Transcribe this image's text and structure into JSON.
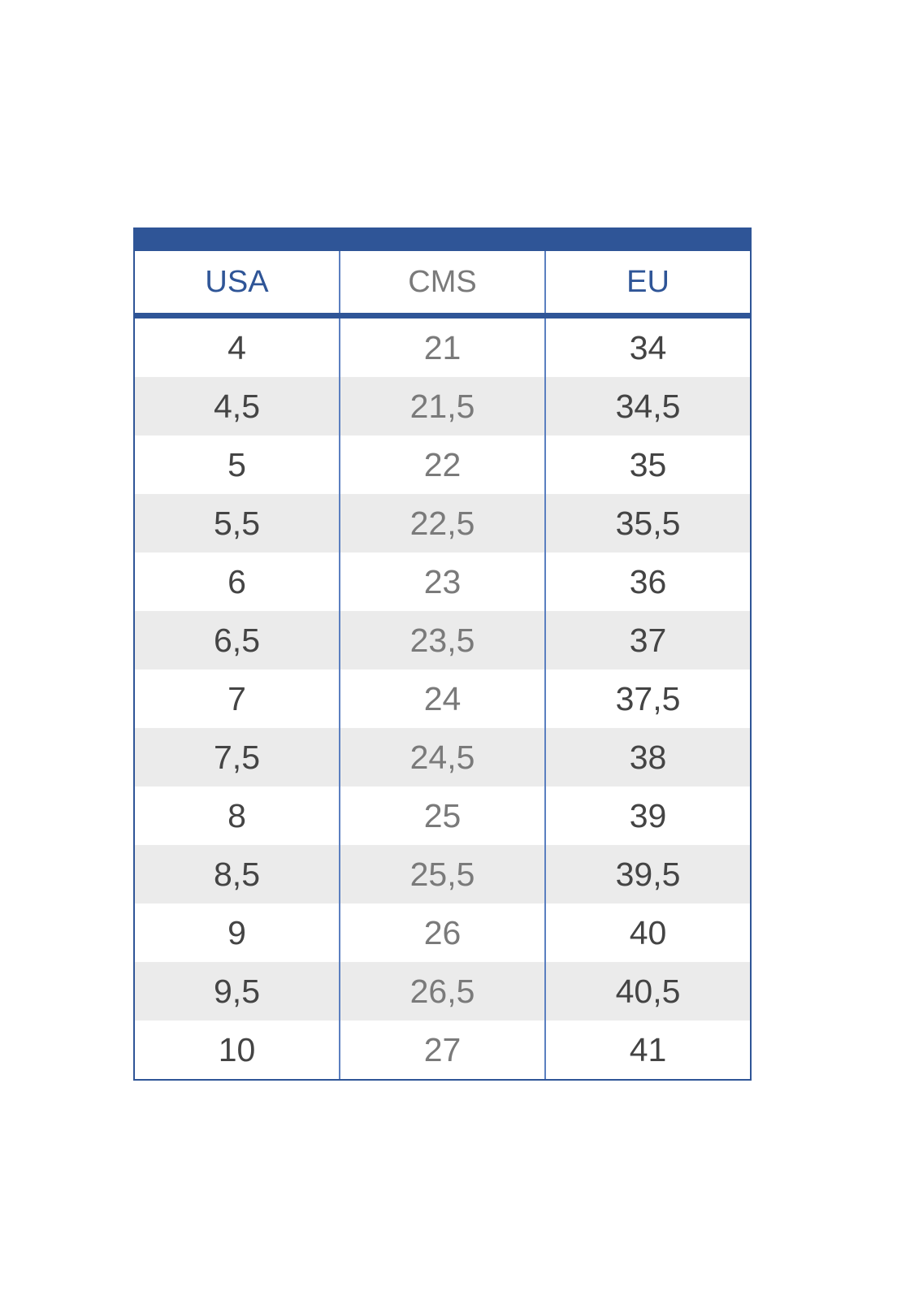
{
  "table": {
    "header": [
      "USA",
      "CMS",
      "EU"
    ],
    "rows": [
      [
        "4",
        "21",
        "34"
      ],
      [
        "4,5",
        "21,5",
        "34,5"
      ],
      [
        "5",
        "22",
        "35"
      ],
      [
        "5,5",
        "22,5",
        "35,5"
      ],
      [
        "6",
        "23",
        "36"
      ],
      [
        "6,5",
        "23,5",
        "37"
      ],
      [
        "7",
        "24",
        "37,5"
      ],
      [
        "7,5",
        "24,5",
        "38"
      ],
      [
        "8",
        "25",
        "39"
      ],
      [
        "8,5",
        "25,5",
        "39,5"
      ],
      [
        "9",
        "26",
        "40"
      ],
      [
        "9,5",
        "26,5",
        "40,5"
      ],
      [
        "10",
        "27",
        "41"
      ]
    ]
  }
}
